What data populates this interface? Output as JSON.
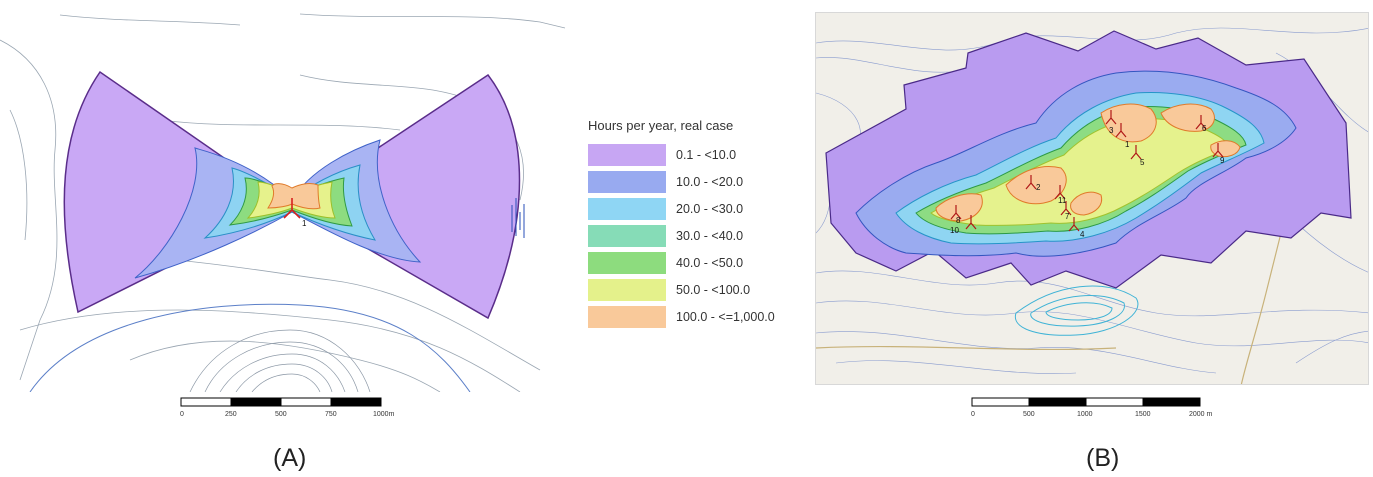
{
  "legend": {
    "title": "Hours per year, real case",
    "items": [
      {
        "label": "0.1 - <10.0",
        "color": "#c7a6f3"
      },
      {
        "label": "10.0 - <20.0",
        "color": "#98aaf0"
      },
      {
        "label": "20.0 - <30.0",
        "color": "#8fd6f4"
      },
      {
        "label": "30.0 - <40.0",
        "color": "#86dcb7"
      },
      {
        "label": "40.0 - <50.0",
        "color": "#8ddc7e"
      },
      {
        "label": "50.0 - <100.0",
        "color": "#e4f18b"
      },
      {
        "label": "100.0 - <=1,000.0",
        "color": "#f9c99a"
      }
    ]
  },
  "panel_a": {
    "caption": "(A)",
    "turbine_labels": [
      "1"
    ],
    "scale": {
      "ticks": [
        "0",
        "250",
        "500",
        "750",
        "1000m"
      ]
    }
  },
  "panel_b": {
    "caption": "(B)",
    "turbine_labels": [
      "1",
      "2",
      "3",
      "4",
      "5",
      "6",
      "7",
      "8",
      "9",
      "10",
      "11"
    ],
    "scale": {
      "ticks": [
        "0",
        "500",
        "1000",
        "1500",
        "2000 m"
      ]
    }
  }
}
